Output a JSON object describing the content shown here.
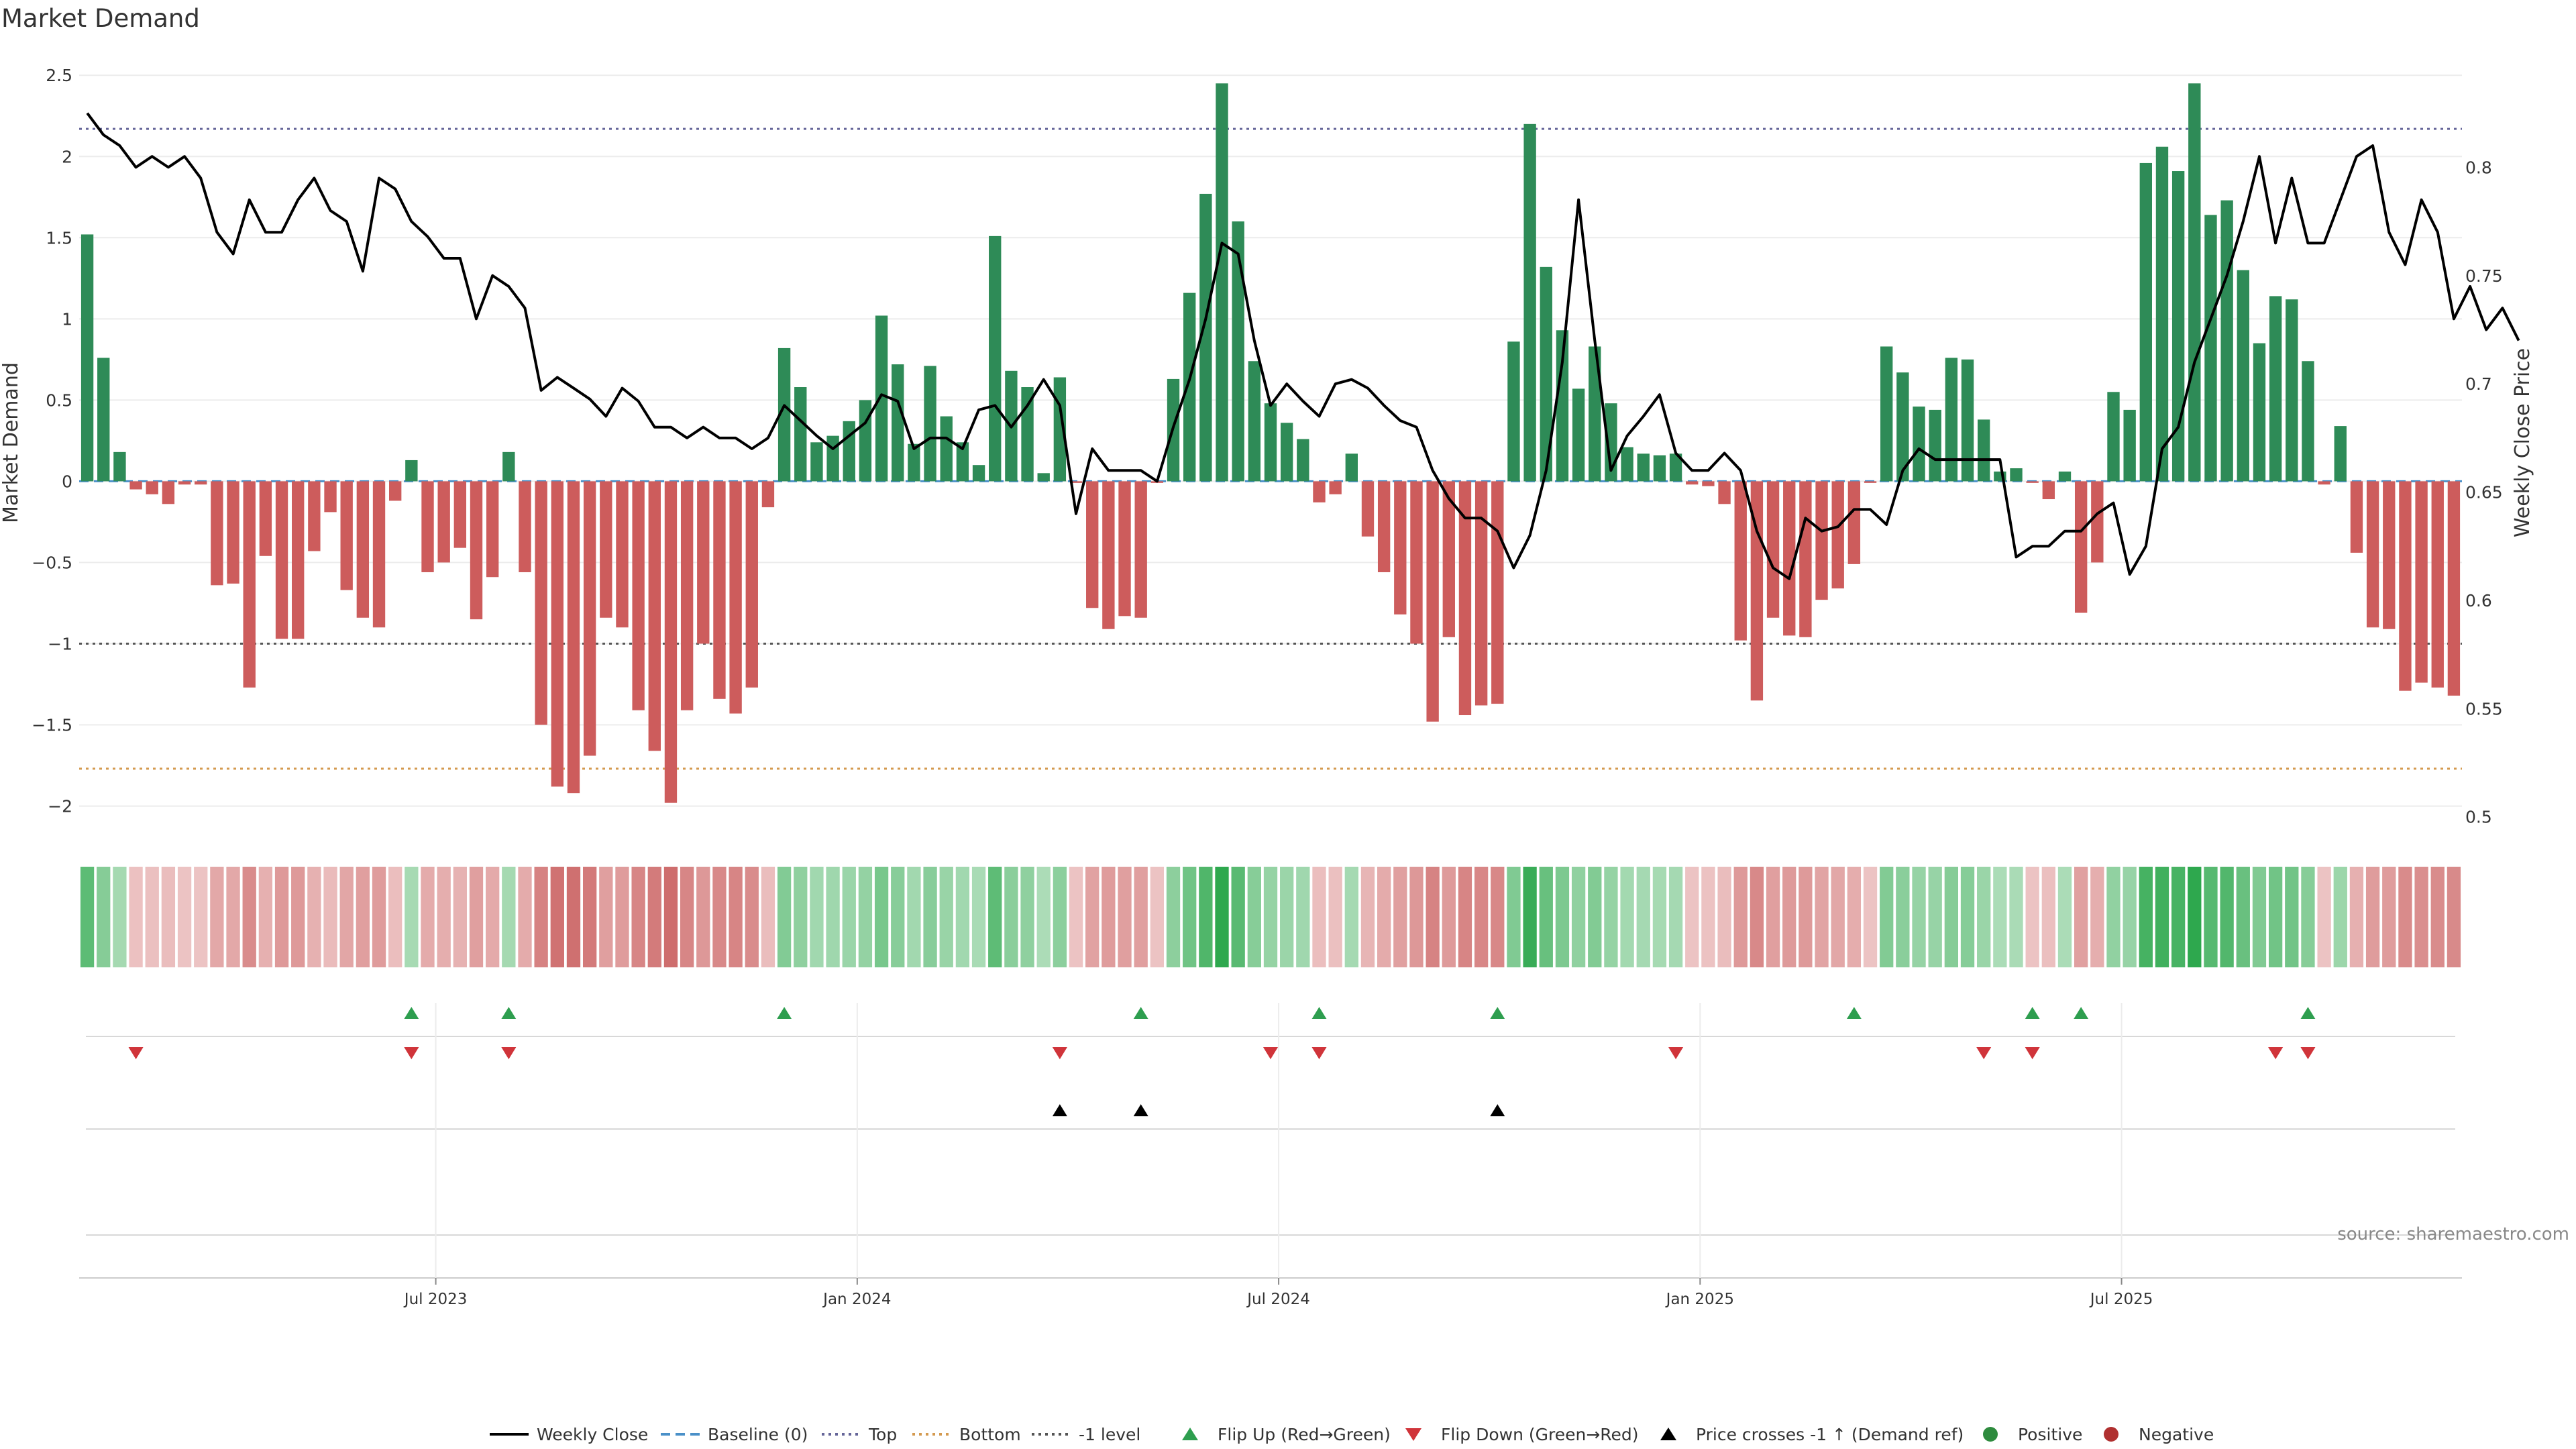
{
  "chart_data": {
    "type": "bar",
    "title": "Market Demand",
    "ylabel": "Market Demand",
    "y2label": "Weekly Close Price",
    "ylim": [
      -2.2,
      2.6
    ],
    "y2lim": [
      0.49,
      0.85
    ],
    "yticks": [
      "2.5",
      "2",
      "1.5",
      "1",
      "0.5",
      "0",
      "−0.5",
      "−1",
      "−1.5",
      "−2"
    ],
    "ytick_values": [
      2.5,
      2,
      1.5,
      1,
      0.5,
      0,
      -0.5,
      -1,
      -1.5,
      -2
    ],
    "y2ticks": [
      "0.8",
      "0.75",
      "0.7",
      "0.65",
      "0.6",
      "0.55",
      "0.5"
    ],
    "y2tick_values": [
      0.8,
      0.75,
      0.7,
      0.65,
      0.6,
      0.55,
      0.5
    ],
    "xticks": [
      {
        "label": "Jul 2023",
        "index": 22
      },
      {
        "label": "Jan 2024",
        "index": 48
      },
      {
        "label": "Jul 2024",
        "index": 74
      },
      {
        "label": "Jan 2025",
        "index": 100
      },
      {
        "label": "Jul 2025",
        "index": 126
      }
    ],
    "lines": {
      "top": 2.17,
      "bottom": -1.77,
      "neg1": -1.0,
      "baseline": 0
    },
    "series": [
      {
        "name": "Market Demand",
        "values": [
          1.52,
          0.76,
          0.18,
          -0.05,
          -0.08,
          -0.14,
          -0.02,
          -0.02,
          -0.64,
          -0.63,
          -1.27,
          -0.46,
          -0.97,
          -0.97,
          -0.43,
          -0.19,
          -0.67,
          -0.84,
          -0.9,
          -0.12,
          0.13,
          -0.56,
          -0.5,
          -0.41,
          -0.85,
          -0.59,
          0.18,
          -0.56,
          -1.5,
          -1.88,
          -1.92,
          -1.69,
          -0.84,
          -0.9,
          -1.41,
          -1.66,
          -1.98,
          -1.41,
          -1.0,
          -1.34,
          -1.43,
          -1.27,
          -0.16,
          0.82,
          0.58,
          0.24,
          0.28,
          0.37,
          0.5,
          1.02,
          0.72,
          0.23,
          0.71,
          0.4,
          0.24,
          0.1,
          1.51,
          0.68,
          0.58,
          0.05,
          0.64,
          -0.01,
          -0.78,
          -0.91,
          -0.83,
          -0.84,
          -0.01,
          0.63,
          1.16,
          1.77,
          2.45,
          1.6,
          0.74,
          0.48,
          0.36,
          0.26,
          -0.13,
          -0.08,
          0.17,
          -0.34,
          -0.56,
          -0.82,
          -1.0,
          -1.48,
          -0.96,
          -1.44,
          -1.38,
          -1.37,
          0.86,
          2.2,
          1.32,
          0.93,
          0.57,
          0.83,
          0.48,
          0.21,
          0.17,
          0.16,
          0.17,
          -0.02,
          -0.03,
          -0.14,
          -0.98,
          -1.35,
          -0.84,
          -0.95,
          -0.96,
          -0.73,
          -0.66,
          -0.51,
          -0.01,
          0.83,
          0.67,
          0.46,
          0.44,
          0.76,
          0.75,
          0.38,
          0.06,
          0.08,
          -0.01,
          -0.11,
          0.06,
          -0.81,
          -0.5,
          0.55,
          0.44,
          1.96,
          2.06,
          1.91,
          2.45,
          1.64,
          1.73,
          1.3,
          0.85,
          1.14,
          1.12,
          0.74,
          -0.02,
          0.34,
          -0.44,
          -0.9,
          -0.91,
          -1.29,
          -1.24,
          -1.27,
          -1.32
        ]
      },
      {
        "name": "Weekly Close",
        "axis": "right",
        "values": [
          0.825,
          0.815,
          0.81,
          0.8,
          0.805,
          0.8,
          0.805,
          0.795,
          0.77,
          0.76,
          0.785,
          0.77,
          0.77,
          0.785,
          0.795,
          0.78,
          0.775,
          0.752,
          0.795,
          0.79,
          0.775,
          0.768,
          0.758,
          0.758,
          0.73,
          0.75,
          0.745,
          0.735,
          0.697,
          0.703,
          0.698,
          0.693,
          0.685,
          0.698,
          0.692,
          0.68,
          0.68,
          0.675,
          0.68,
          0.675,
          0.675,
          0.67,
          0.675,
          0.69,
          0.683,
          0.676,
          0.67,
          0.676,
          0.682,
          0.695,
          0.692,
          0.67,
          0.675,
          0.675,
          0.67,
          0.688,
          0.69,
          0.68,
          0.69,
          0.702,
          0.69,
          0.64,
          0.67,
          0.66,
          0.66,
          0.66,
          0.655,
          0.68,
          0.702,
          0.73,
          0.765,
          0.76,
          0.72,
          0.69,
          0.7,
          0.692,
          0.685,
          0.7,
          0.702,
          0.698,
          0.69,
          0.683,
          0.68,
          0.66,
          0.647,
          0.638,
          0.638,
          0.632,
          0.615,
          0.63,
          0.66,
          0.71,
          0.785,
          0.72,
          0.66,
          0.676,
          0.685,
          0.695,
          0.668,
          0.66,
          0.66,
          0.668,
          0.66,
          0.632,
          0.615,
          0.61,
          0.638,
          0.632,
          0.634,
          0.642,
          0.642,
          0.635,
          0.66,
          0.67,
          0.665,
          0.665,
          0.665,
          0.665,
          0.665,
          0.62,
          0.625,
          0.625,
          0.632,
          0.632,
          0.64,
          0.645,
          0.612,
          0.625,
          0.67,
          0.68,
          0.71,
          0.73,
          0.75,
          0.775,
          0.805,
          0.765,
          0.795,
          0.765,
          0.765,
          0.785,
          0.805,
          0.81,
          0.77,
          0.755,
          0.785,
          0.77,
          0.73,
          0.745,
          0.725,
          0.735,
          0.72
        ]
      }
    ],
    "heat_strip": "Market Demand intensity (green positive, red negative)",
    "flip_up_indices": [
      20,
      26,
      43,
      65,
      76,
      87,
      109,
      120,
      123,
      137
    ],
    "flip_down_indices": [
      3,
      20,
      26,
      60,
      73,
      76,
      98,
      117,
      120,
      135,
      137
    ],
    "price_cross_indices": [
      60,
      65,
      87
    ],
    "source": "source: sharemaestro.com",
    "legend": [
      {
        "label": "Weekly Close",
        "style": "line",
        "color": "#000000"
      },
      {
        "label": "Baseline (0)",
        "style": "dashed",
        "color": "#4a90c8"
      },
      {
        "label": "Top",
        "style": "dotted",
        "color": "#666699"
      },
      {
        "label": "Bottom",
        "style": "dotted",
        "color": "#d49a50"
      },
      {
        "label": "-1 level",
        "style": "dotted",
        "color": "#555555"
      },
      {
        "label": "Flip Up (Red→Green)",
        "style": "triangle-up",
        "color": "#2e9e4f"
      },
      {
        "label": "Flip Down (Green→Red)",
        "style": "triangle-down",
        "color": "#d0343a"
      },
      {
        "label": "Price crosses -1 ↑ (Demand ref)",
        "style": "triangle-up",
        "color": "#000000"
      },
      {
        "label": "Positive",
        "style": "circle",
        "color": "#2e8b3e"
      },
      {
        "label": "Negative",
        "style": "circle",
        "color": "#b03030"
      }
    ],
    "colors": {
      "pos": "#2e8b57",
      "neg": "#cd5c5c",
      "line": "#000000"
    }
  }
}
